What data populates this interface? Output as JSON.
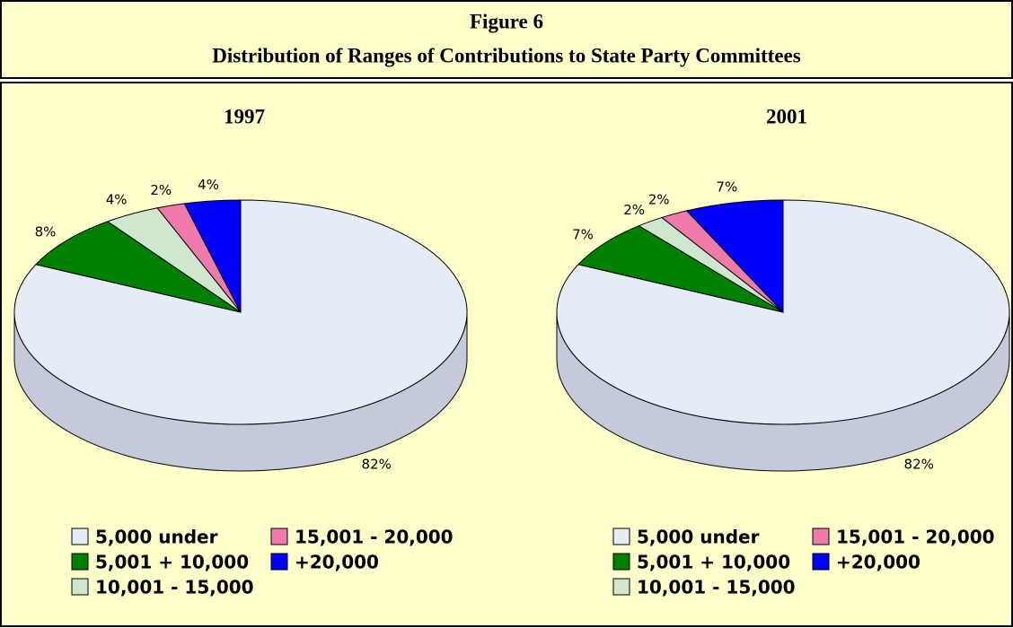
{
  "header": {
    "figure": "Figure 6",
    "title": "Distribution of Ranges of Contributions to State Party Committees"
  },
  "chart_data": [
    {
      "type": "pie",
      "title": "1997",
      "categories": [
        "5,000 under",
        "5,001 + 10,000",
        "10,001 - 15,000",
        "15,001 - 20,000",
        "+20,000"
      ],
      "values": [
        82,
        8,
        4,
        2,
        4
      ],
      "value_labels": [
        "82%",
        "8%",
        "4%",
        "2%",
        "4%"
      ],
      "colors": [
        "#e4ecf6",
        "#008000",
        "#cfe6cf",
        "#f07aaa",
        "#0000ff"
      ]
    },
    {
      "type": "pie",
      "title": "2001",
      "categories": [
        "5,000 under",
        "5,001 + 10,000",
        "10,001 - 15,000",
        "15,001 - 20,000",
        "+20,000"
      ],
      "values": [
        82,
        7,
        2,
        2,
        7
      ],
      "value_labels": [
        "82%",
        "7%",
        "2%",
        "2%",
        "7%"
      ],
      "colors": [
        "#e4ecf6",
        "#008000",
        "#cfe6cf",
        "#f07aaa",
        "#0000ff"
      ]
    }
  ]
}
